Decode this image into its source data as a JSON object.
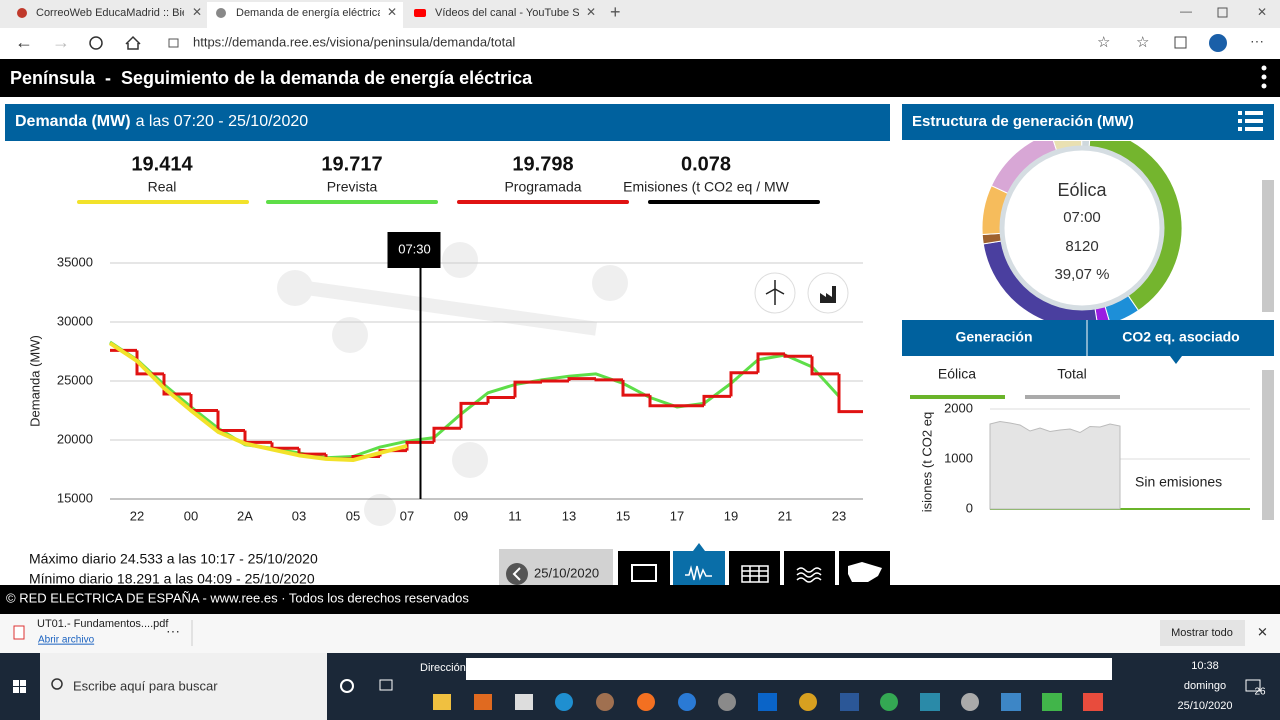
{
  "browser": {
    "tabs": [
      "CorreoWeb EducaMadrid :: Bienv",
      "Demanda de energía eléctrica en",
      "Vídeos del canal - YouTube Studi"
    ],
    "url": "https://demanda.ree.es/visiona/peninsula/demanda/total"
  },
  "header": {
    "title": "Península  -  Seguimiento de la demanda de energía eléctrica"
  },
  "demand_panel": {
    "title": "Demanda (MW)",
    "subtitle": "a las 07:20 - 25/10/2020",
    "kpis": [
      {
        "value": "19.414",
        "label": "Real",
        "color": "#f2e22a"
      },
      {
        "value": "19.717",
        "label": "Prevista",
        "color": "#5ede48"
      },
      {
        "value": "19.798",
        "label": "Programada",
        "color": "#e01212"
      },
      {
        "value": "0.078",
        "label": "Emisiones (t CO2 eq / MW",
        "color": "#000000"
      }
    ],
    "cursor": "07:30",
    "max": "Máximo diario 24.533 a las 10:17 - 25/10/2020",
    "min": "Mínimo diario 18.291 a las 04:09 - 25/10/2020",
    "date": "25/10/2020"
  },
  "chart_data": [
    {
      "type": "line",
      "y_label": "Demanda (MW)",
      "categories": [
        null,
        "22",
        null,
        "00",
        null,
        "2A",
        null,
        "03",
        null,
        "05",
        null,
        "07",
        null,
        "09",
        null,
        "11",
        null,
        "13",
        null,
        "15",
        null,
        "17",
        null,
        "19",
        null,
        "21",
        null,
        "23"
      ],
      "series": [
        {
          "name": "Prevista",
          "color": "#5ede48",
          "step": false,
          "values": [
            28300,
            26800,
            24700,
            22800,
            21000,
            19600,
            19300,
            18900,
            18500,
            18600,
            19400,
            19900,
            20200,
            22200,
            24000,
            24700,
            25100,
            25400,
            25600,
            24800,
            23600,
            22800,
            23100,
            24800,
            26800,
            27200,
            26200,
            23700
          ]
        },
        {
          "name": "Programada",
          "color": "#e01212",
          "step": true,
          "values": [
            27600,
            25600,
            23900,
            22500,
            20800,
            19800,
            19300,
            18800,
            18400,
            18600,
            19100,
            19800,
            21000,
            23100,
            23600,
            24900,
            25000,
            25200,
            25100,
            23800,
            22900,
            22900,
            23700,
            25700,
            27300,
            27100,
            25600,
            22400
          ]
        },
        {
          "name": "Real",
          "color": "#f2e22a",
          "step": false,
          "values": [
            28200,
            26700,
            24400,
            22500,
            20700,
            19700,
            19200,
            18700,
            18400,
            18300,
            18900,
            19500,
            null,
            null,
            null,
            null,
            null,
            null,
            null,
            null,
            null,
            null,
            null,
            null,
            null,
            null,
            null,
            null
          ]
        }
      ],
      "ylim": [
        15000,
        35000
      ],
      "yticks": [
        15000,
        20000,
        25000,
        30000,
        35000
      ],
      "grid": true
    },
    {
      "type": "pie",
      "donut": true,
      "values": [
        39.07,
        5,
        2,
        25,
        1.5,
        8,
        13,
        5,
        1.43
      ],
      "colors": [
        "#74b52e",
        "#1d8fd8",
        "#9a1de2",
        "#4a3f9f",
        "#9e612e",
        "#f6bc5c",
        "#d8a7d6",
        "#e9e0b2",
        "#cfd8dc"
      ]
    },
    {
      "type": "area",
      "y_label": "isiones (t CO2 eq",
      "annotation": "Sin emisiones",
      "values": [
        1700,
        1750,
        1720,
        1680,
        1560,
        1620,
        1550,
        1580,
        1600,
        1530,
        1650,
        1640,
        1700,
        1660,
        null,
        null,
        null,
        null,
        null,
        null,
        null,
        null,
        null,
        null,
        null,
        null
      ],
      "color": "#e4e4e4",
      "ylim": [
        0,
        2000
      ],
      "yticks": [
        0,
        1000,
        2000
      ],
      "grid": true
    }
  ],
  "generation_panel": {
    "title": "Estructura de generación (MW)",
    "center": {
      "name": "Eólica",
      "time": "07:00",
      "value": "8120",
      "percent": "39,07 %"
    },
    "tabs": [
      "Generación",
      "CO2 eq. asociado"
    ],
    "subtabs": [
      "Eólica",
      "Total"
    ]
  },
  "footer": "© RED ELECTRICA DE ESPAÑA - www.ree.es · Todos los derechos reservados",
  "download": {
    "file": "UT01.- Fundamentos....pdf",
    "open": "Abrir archivo",
    "show_all": "Mostrar todo"
  },
  "taskbar": {
    "search": "Escribe aquí para buscar",
    "address_label": "Dirección",
    "time": "10:38",
    "day": "domingo",
    "date": "25/10/2020",
    "notifications": "26"
  }
}
